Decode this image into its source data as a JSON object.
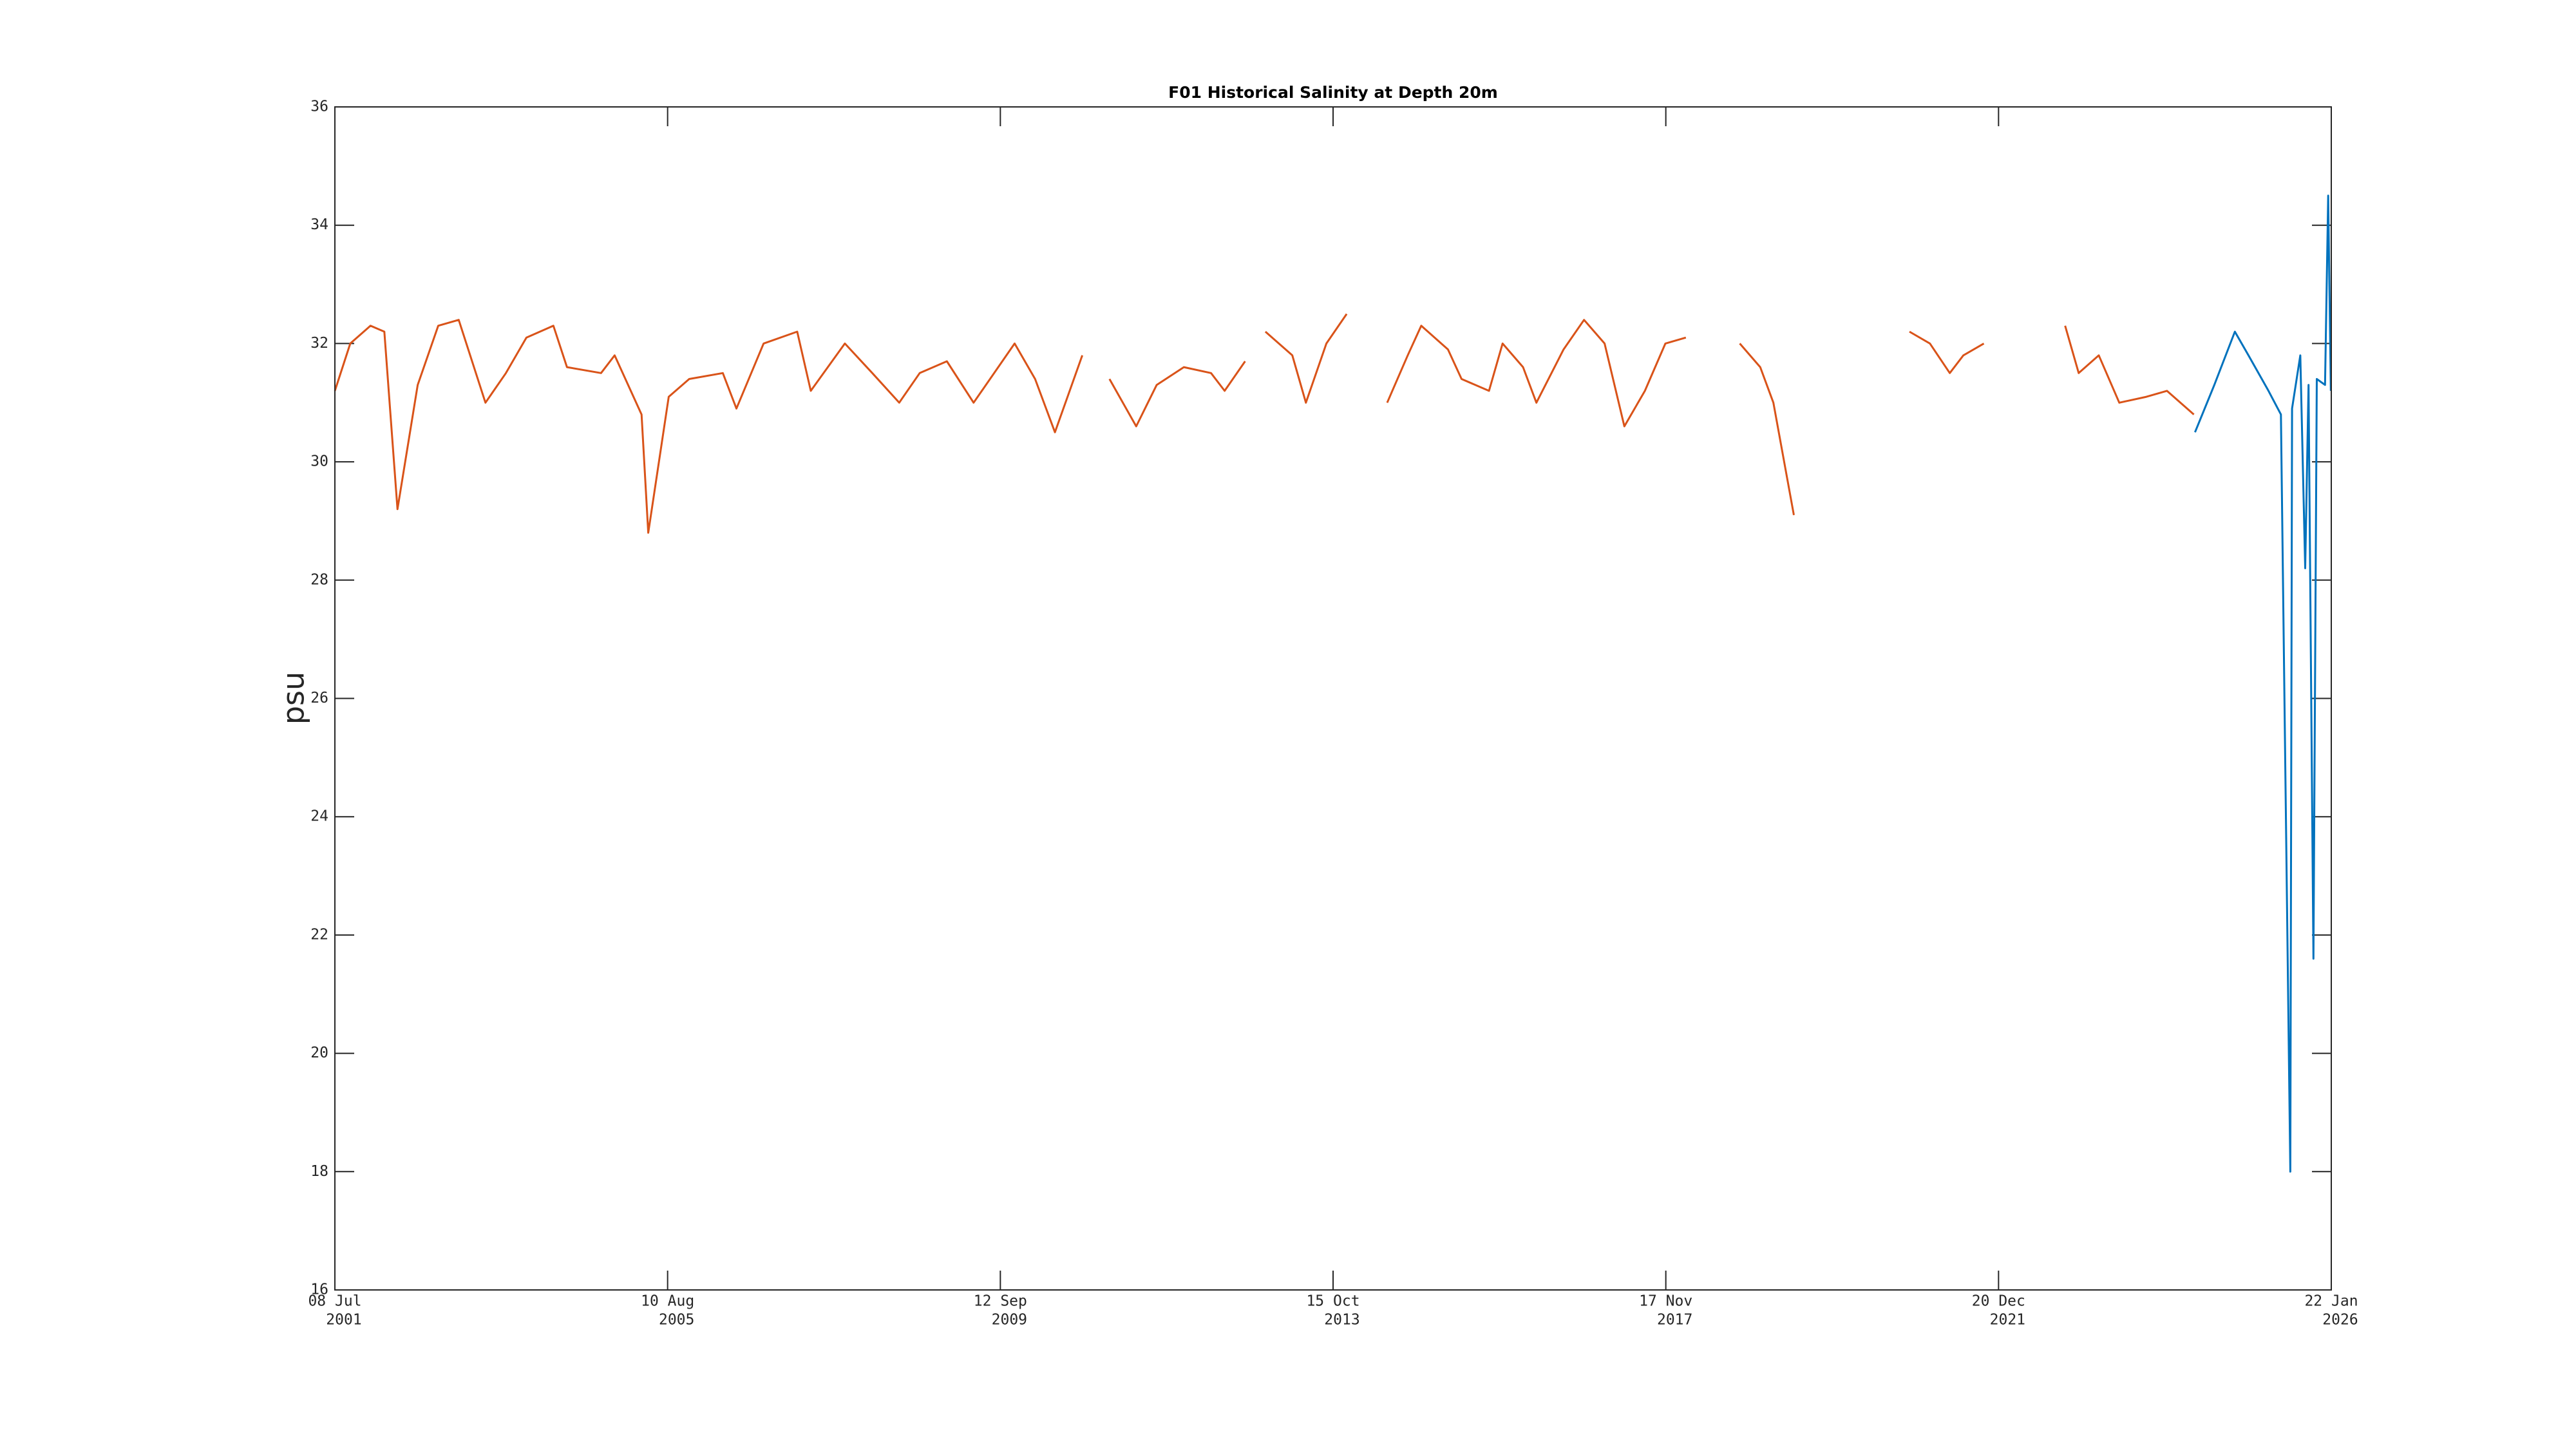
{
  "chart_data": {
    "type": "line",
    "title": "F01 Historical Salinity at Depth 20m",
    "ylabel": "psu",
    "xlim": [
      "2001-07-08",
      "2026-01-22"
    ],
    "ylim": [
      16,
      36
    ],
    "yticks": [
      16,
      18,
      20,
      22,
      24,
      26,
      28,
      30,
      32,
      34,
      36
    ],
    "xticks": [
      {
        "value": "2001-07-08",
        "label": [
          "08 Jul",
          "2001"
        ]
      },
      {
        "value": "2005-08-10",
        "label": [
          "10 Aug",
          "2005"
        ]
      },
      {
        "value": "2009-09-12",
        "label": [
          "12 Sep",
          "2009"
        ]
      },
      {
        "value": "2013-10-15",
        "label": [
          "15 Oct",
          "2013"
        ]
      },
      {
        "value": "2017-11-17",
        "label": [
          "17 Nov",
          "2017"
        ]
      },
      {
        "value": "2021-12-20",
        "label": [
          "20 Dec",
          "2021"
        ]
      },
      {
        "value": "2026-01-22",
        "label": [
          "22 Jan",
          "2026"
        ]
      }
    ],
    "grid": false,
    "series": [
      {
        "color": "#d95319",
        "x": [
          "2001-07-08",
          "2001-09-15",
          "2001-12-15",
          "2002-02-15",
          "2002-04-15",
          "2002-07-15",
          "2002-10-15",
          "2003-01-15",
          "2003-05-15",
          "2003-08-15",
          "2003-11-15",
          "2004-03-15",
          "2004-05-15",
          "2004-10-15",
          "2004-12-15",
          "2005-04-15",
          "2005-05-15",
          "2005-08-15",
          "2005-11-15",
          "2006-04-15",
          "2006-06-15",
          "2006-10-15",
          "2007-03-15",
          "2007-05-15",
          "2007-10-15",
          "2008-02-15",
          "2008-06-15",
          "2008-09-15",
          "2009-01-15",
          "2009-05-15",
          "2009-11-15",
          "2010-02-15",
          "2010-05-15",
          "2010-09-15",
          "2010-12-01",
          "2011-01-15",
          "2011-05-15",
          "2011-08-15",
          "2011-12-15",
          "2012-04-15",
          "2012-06-15",
          "2012-09-15",
          "2012-11-01",
          "2012-12-15",
          "2013-04-15",
          "2013-06-15",
          "2013-09-15",
          "2013-12-15",
          "2014-03-01",
          "2014-06-15",
          "2014-09-15",
          "2014-11-15",
          "2015-03-15",
          "2015-05-15",
          "2015-09-15",
          "2015-11-15",
          "2016-02-15",
          "2016-04-15",
          "2016-08-15",
          "2016-11-15",
          "2017-02-15",
          "2017-05-15",
          "2017-08-15",
          "2017-11-15",
          "2018-02-15",
          "2018-06-01",
          "2018-10-15",
          "2019-01-15",
          "2019-03-15",
          "2019-06-15",
          "2020-01-01",
          "2020-11-15",
          "2021-02-15",
          "2021-05-15",
          "2021-07-15",
          "2021-10-15",
          "2022-03-01",
          "2022-10-15",
          "2022-12-15",
          "2023-03-15",
          "2023-06-15",
          "2023-10-15",
          "2024-01-15",
          "2024-05-15"
        ],
        "values": [
          31.2,
          32.0,
          32.3,
          32.2,
          29.2,
          31.3,
          32.3,
          32.4,
          31.0,
          31.5,
          32.1,
          32.3,
          31.6,
          31.5,
          31.8,
          30.8,
          28.8,
          31.1,
          31.4,
          31.5,
          30.9,
          32.0,
          32.2,
          31.2,
          32.0,
          31.5,
          31.0,
          31.5,
          31.7,
          31.0,
          32.0,
          31.4,
          30.5,
          31.8,
          null,
          31.4,
          30.6,
          31.3,
          31.6,
          31.5,
          31.2,
          31.7,
          null,
          32.2,
          31.8,
          31.0,
          32.0,
          32.5,
          null,
          31.0,
          31.8,
          32.3,
          31.9,
          31.4,
          31.2,
          32.0,
          31.6,
          31.0,
          31.9,
          32.4,
          32.0,
          30.6,
          31.2,
          32.0,
          32.1,
          null,
          32.0,
          31.6,
          31.0,
          29.1,
          null,
          32.2,
          32.0,
          31.5,
          31.8,
          32.0,
          null,
          32.3,
          31.5,
          31.8,
          31.0,
          31.1,
          31.2,
          30.8
        ]
      },
      {
        "color": "#0072bd",
        "x": [
          "2024-05-20",
          "2024-08-15",
          "2024-11-15",
          "2025-01-15",
          "2025-04-15",
          "2025-06-10",
          "2025-07-22",
          "2025-07-30",
          "2025-09-05",
          "2025-09-27",
          "2025-10-12",
          "2025-11-03",
          "2025-11-18",
          "2025-12-25",
          "2026-01-08",
          "2026-01-20"
        ],
        "values": [
          30.5,
          31.3,
          32.2,
          31.8,
          31.2,
          30.8,
          18.0,
          30.9,
          31.8,
          28.2,
          31.3,
          21.6,
          31.4,
          31.3,
          34.5,
          31.2
        ]
      }
    ]
  }
}
